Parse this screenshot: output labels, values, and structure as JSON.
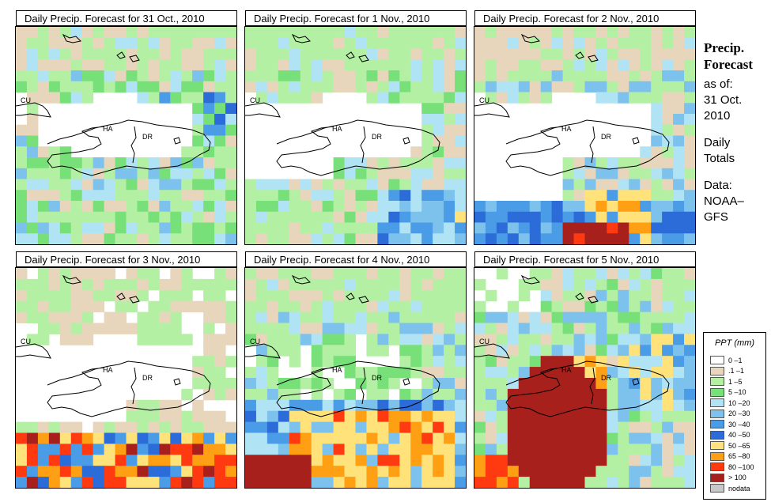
{
  "panels": [
    {
      "title": "Daily Precip. Forecast for  31 Oct., 2010",
      "seed": 11,
      "pattern": "oct31"
    },
    {
      "title": "Daily Precip. Forecast for  1 Nov., 2010",
      "seed": 23,
      "pattern": "nov1"
    },
    {
      "title": "Daily Precip. Forecast for  2 Nov., 2010",
      "seed": 37,
      "pattern": "nov2"
    },
    {
      "title": "Daily Precip. Forecast for  3 Nov., 2010",
      "seed": 41,
      "pattern": "nov3"
    },
    {
      "title": "Daily Precip. Forecast for  4 Nov., 2010",
      "seed": 53,
      "pattern": "nov4"
    },
    {
      "title": "Daily Precip. Forecast for  5 Nov., 2010",
      "seed": 67,
      "pattern": "nov5"
    }
  ],
  "map_labels": {
    "cuba": "CU",
    "haiti": "HA",
    "dominican_republic": "DR"
  },
  "side": {
    "title1": "Precip.",
    "title2": "Forecast",
    "asof": "as of:",
    "date1": "31 Oct.",
    "date2": "2010",
    "daily1": "Daily",
    "daily2": "Totals",
    "data1": "Data:",
    "data2": "NOAA–",
    "data3": "GFS"
  },
  "legend": {
    "title": "PPT (mm)",
    "items": [
      {
        "label": "0 –1",
        "color": "#ffffff"
      },
      {
        "label": ".1 –1",
        "color": "#e8d6bc"
      },
      {
        "label": "1 –5",
        "color": "#b4f0a4"
      },
      {
        "label": "5 –10",
        "color": "#78e078"
      },
      {
        "label": "10 –20",
        "color": "#b0e4f4"
      },
      {
        "label": "20 –30",
        "color": "#7cc2ec"
      },
      {
        "label": "30 –40",
        "color": "#4a9ce6"
      },
      {
        "label": "40 –50",
        "color": "#2c6cd8"
      },
      {
        "label": "50 –65",
        "color": "#ffe27a"
      },
      {
        "label": "65 –80",
        "color": "#ffa014"
      },
      {
        "label": "80 –100",
        "color": "#ff3a10"
      },
      {
        "label": "> 100",
        "color": "#a8201c"
      },
      {
        "label": "nodata",
        "color": "#c8c8c8"
      }
    ]
  }
}
